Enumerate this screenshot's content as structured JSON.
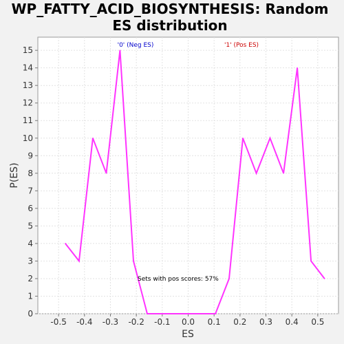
{
  "chart_data": {
    "type": "line",
    "title_line1": "WP_FATTY_ACID_BIOSYNTHESIS: Random",
    "title_line2": "ES distribution",
    "xlabel": "ES",
    "ylabel": "P(ES)",
    "xlim": [
      -0.58,
      0.58
    ],
    "ylim": [
      0,
      15.75
    ],
    "x_ticks": [
      -0.5,
      -0.4,
      -0.3,
      -0.2,
      -0.1,
      0.0,
      0.1,
      0.2,
      0.3,
      0.4,
      0.5
    ],
    "x_tick_labels": [
      "-0.5",
      "-0.4",
      "-0.3",
      "-0.2",
      "-0.1",
      "0.0",
      "0.1",
      "0.2",
      "0.3",
      "0.4",
      "0.5"
    ],
    "y_ticks": [
      0,
      1,
      2,
      3,
      4,
      5,
      6,
      7,
      8,
      9,
      10,
      11,
      12,
      13,
      14,
      15
    ],
    "y_tick_labels": [
      "0",
      "1",
      "2",
      "3",
      "4",
      "5",
      "6",
      "7",
      "8",
      "9",
      "10",
      "11",
      "12",
      "13",
      "14",
      "15"
    ],
    "grid": true,
    "series": [
      {
        "color": "#ff33ff",
        "points": [
          {
            "x": -0.474,
            "y": 4
          },
          {
            "x": -0.421,
            "y": 3
          },
          {
            "x": -0.368,
            "y": 10
          },
          {
            "x": -0.316,
            "y": 8
          },
          {
            "x": -0.263,
            "y": 15
          },
          {
            "x": -0.211,
            "y": 3
          },
          {
            "x": -0.158,
            "y": 0
          },
          {
            "x": -0.105,
            "y": 0
          },
          {
            "x": -0.053,
            "y": 0
          },
          {
            "x": 0.0,
            "y": 0
          },
          {
            "x": 0.053,
            "y": 0
          },
          {
            "x": 0.105,
            "y": 0
          },
          {
            "x": 0.158,
            "y": 2
          },
          {
            "x": 0.211,
            "y": 10
          },
          {
            "x": 0.263,
            "y": 8
          },
          {
            "x": 0.316,
            "y": 10
          },
          {
            "x": 0.368,
            "y": 8
          },
          {
            "x": 0.421,
            "y": 14
          },
          {
            "x": 0.474,
            "y": 3
          },
          {
            "x": 0.526,
            "y": 2
          }
        ]
      }
    ],
    "annotations": {
      "neg_label": "'0' (Neg ES)",
      "neg_color": "#0000cc",
      "pos_label": "'1' (Pos ES)",
      "pos_color": "#cc0000",
      "pos_scores_text": "Sets with pos scores: 57%"
    }
  }
}
